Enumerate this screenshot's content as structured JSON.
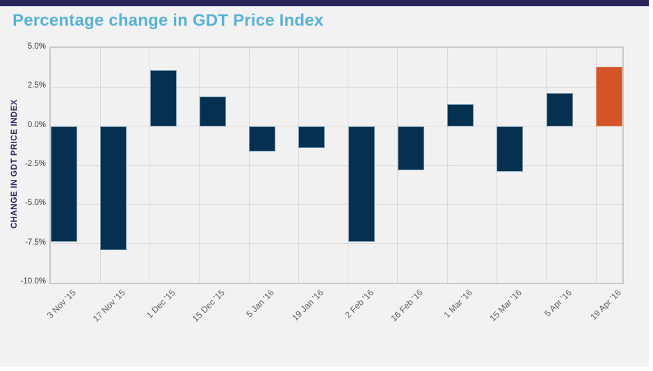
{
  "page": {
    "background_color": "#ffffff",
    "panel_color": "#f2f2f3",
    "top_bar_color": "#29245a"
  },
  "colors": {
    "title": "#58b2d3",
    "y_axis_title": "#2d2a66",
    "y_tick_text": "#3b3b3d",
    "x_tick_text": "#5f5f61",
    "plot_border": "#c9c9ca",
    "gridline": "#dadadb",
    "bar_default": "#05304f",
    "bar_default_border": "#6e94ad",
    "bar_highlight": "#d4542a",
    "bar_highlight_border": "#e4906f"
  },
  "chart_data": {
    "type": "bar",
    "title": "Percentage change in GDT Price Index",
    "xlabel": "",
    "ylabel": "CHANGE IN GDT PRICE INDEX",
    "categories": [
      "3 Nov '15",
      "17 Nov '15",
      "1 Dec '15",
      "15 Dec '15",
      "5 Jan '16",
      "19 Jan '16",
      "2 Feb '16",
      "16 Feb '16",
      "1 Mar '16",
      "15 Mar '16",
      "5 Apr '16",
      "19 Apr '16"
    ],
    "values": [
      -7.4,
      -7.9,
      3.6,
      1.9,
      -1.6,
      -1.4,
      -7.4,
      -2.8,
      1.4,
      -2.9,
      2.1,
      3.8
    ],
    "unit": "%",
    "ylim": [
      -10.0,
      5.0
    ],
    "ytick_values": [
      5.0,
      2.5,
      0.0,
      -2.5,
      -5.0,
      -7.5,
      -10.0
    ],
    "ytick_labels": [
      "5.0%",
      "2.5%",
      "0.0%",
      "-2.5%",
      "-5.0%",
      "-7.5%",
      "-10.0%"
    ],
    "grid": true,
    "legend": "none",
    "highlight_index": 11
  }
}
